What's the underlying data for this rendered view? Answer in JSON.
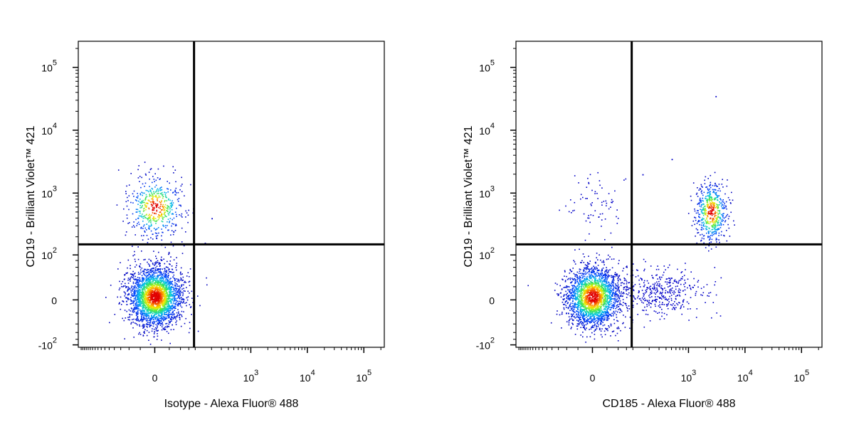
{
  "chart_data": [
    {
      "type": "scatter",
      "subtype": "flow-cytometry-density-dot-plot",
      "xlabel": "Isotype - Alexa Fluor® 488",
      "ylabel": "CD19 - Brilliant Violet™ 421",
      "x_scale": "biexponential",
      "y_scale": "biexponential",
      "x_ticks": [
        {
          "value": 0,
          "base": "0",
          "exp": ""
        },
        {
          "value": 1000,
          "base": "10",
          "exp": "3"
        },
        {
          "value": 10000,
          "base": "10",
          "exp": "4"
        },
        {
          "value": 100000,
          "base": "10",
          "exp": "5"
        }
      ],
      "y_ticks": [
        {
          "value": -100,
          "base": "-10",
          "exp": "2"
        },
        {
          "value": 0,
          "base": "0",
          "exp": ""
        },
        {
          "value": 100,
          "base": "10",
          "exp": "2"
        },
        {
          "value": 1000,
          "base": "10",
          "exp": "3"
        },
        {
          "value": 10000,
          "base": "10",
          "exp": "4"
        },
        {
          "value": 100000,
          "base": "10",
          "exp": "5"
        }
      ],
      "quadrant_gate": {
        "x": 95,
        "y": 150
      },
      "populations": [
        {
          "name": "",
          "center_x": 0,
          "center_y": 5,
          "count": 2600,
          "colored_density": true
        },
        {
          "name": "",
          "center_x": 0,
          "center_y": 600,
          "count": 520,
          "colored_density": true
        }
      ],
      "sparse_events": [
        {
          "x": 200,
          "y": 400
        },
        {
          "x": 150,
          "y": 160
        }
      ]
    },
    {
      "type": "scatter",
      "subtype": "flow-cytometry-density-dot-plot",
      "xlabel": "CD185 - Alexa Fluor® 488",
      "ylabel": "CD19 - Brilliant Violet™ 421",
      "x_scale": "biexponential",
      "y_scale": "biexponential",
      "x_ticks": [
        {
          "value": 0,
          "base": "0",
          "exp": ""
        },
        {
          "value": 1000,
          "base": "10",
          "exp": "3"
        },
        {
          "value": 10000,
          "base": "10",
          "exp": "4"
        },
        {
          "value": 100000,
          "base": "10",
          "exp": "5"
        }
      ],
      "y_ticks": [
        {
          "value": -100,
          "base": "-10",
          "exp": "2"
        },
        {
          "value": 0,
          "base": "0",
          "exp": ""
        },
        {
          "value": 100,
          "base": "10",
          "exp": "2"
        },
        {
          "value": 1000,
          "base": "10",
          "exp": "3"
        },
        {
          "value": 10000,
          "base": "10",
          "exp": "4"
        },
        {
          "value": 100000,
          "base": "10",
          "exp": "5"
        }
      ],
      "quadrant_gate": {
        "x": 95,
        "y": 150
      },
      "populations": [
        {
          "name": "",
          "center_x": 0,
          "center_y": 5,
          "count": 2300,
          "colored_density": true
        },
        {
          "name": "",
          "center_x": 300,
          "center_y": 10,
          "count": 420,
          "colored_density": false
        },
        {
          "name": "",
          "center_x": 2500,
          "center_y": 500,
          "count": 560,
          "colored_density": true
        },
        {
          "name": "",
          "center_x": 0,
          "center_y": 700,
          "count": 70,
          "colored_density": false
        }
      ],
      "sparse_events": [
        {
          "x": 3000,
          "y": 35000
        },
        {
          "x": 500,
          "y": 3500
        },
        {
          "x": 150,
          "y": 2000
        }
      ]
    }
  ]
}
